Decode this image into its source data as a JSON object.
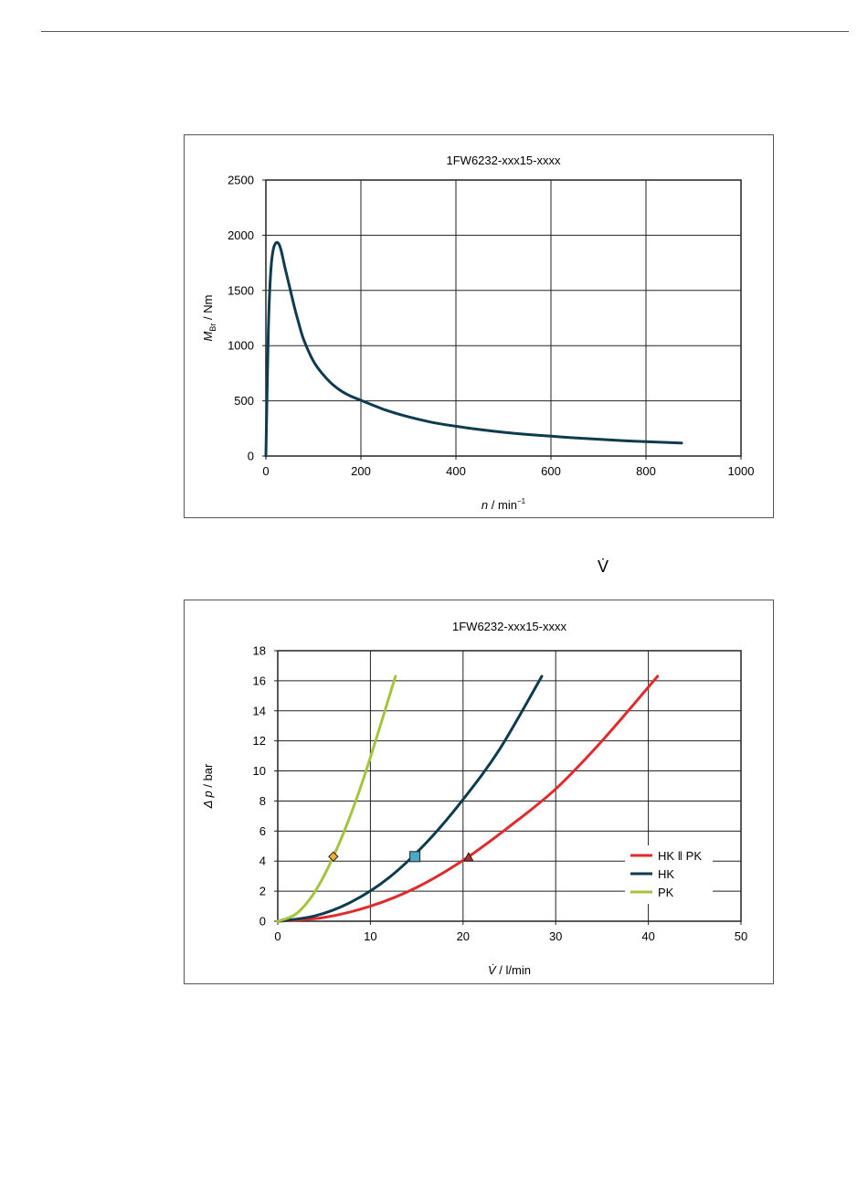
{
  "page": {
    "vdot_symbol": "V̇"
  },
  "chart_data": [
    {
      "type": "line",
      "title": "1FW6232-xxx15-xxxx",
      "xlabel_italic": "n",
      "xlabel_rest": " / min",
      "xlabel_sup": "−1",
      "ylabel_italic": "M",
      "ylabel_sub": "Br",
      "ylabel_rest": " / Nm",
      "xlim": [
        0,
        1000
      ],
      "ylim": [
        0,
        2500
      ],
      "x_ticks": [
        0,
        200,
        400,
        600,
        800,
        1000
      ],
      "y_ticks": [
        0,
        500,
        1000,
        1500,
        2000,
        2500
      ],
      "grid": true,
      "series": [
        {
          "color": "#0f3b4e",
          "x": [
            0,
            2,
            5,
            8,
            12,
            16,
            20,
            24,
            28,
            32,
            36,
            40,
            50,
            60,
            70,
            80,
            100,
            120,
            140,
            160,
            180,
            200,
            250,
            300,
            350,
            400,
            450,
            500,
            550,
            600,
            650,
            700,
            750,
            800,
            850,
            875
          ],
          "y": [
            0,
            450,
            1100,
            1500,
            1760,
            1880,
            1925,
            1935,
            1915,
            1865,
            1790,
            1710,
            1530,
            1350,
            1190,
            1050,
            860,
            740,
            650,
            585,
            540,
            505,
            420,
            355,
            305,
            270,
            240,
            215,
            195,
            180,
            165,
            152,
            140,
            130,
            122,
            118
          ]
        }
      ]
    },
    {
      "type": "line",
      "title": "1FW6232-xxx15-xxxx",
      "xlabel_italic": "V̇",
      "xlabel_rest": " / l/min",
      "ylabel_italic": "Δ p",
      "ylabel_rest": " / bar",
      "xlim": [
        0,
        50
      ],
      "ylim": [
        0,
        18
      ],
      "x_ticks": [
        0,
        10,
        20,
        30,
        40,
        50
      ],
      "y_ticks": [
        0,
        2,
        4,
        6,
        8,
        10,
        12,
        14,
        16,
        18
      ],
      "grid": true,
      "legend_position": "right-lower",
      "series": [
        {
          "name": "HK ‖ PK",
          "color": "#e02b2b",
          "marker": "triangle",
          "marker_point": [
            20.6,
            4.25
          ],
          "x": [
            0,
            5,
            10,
            15,
            20,
            25,
            30,
            35,
            41
          ],
          "y": [
            0,
            0.25,
            1.0,
            2.25,
            4.05,
            6.3,
            8.8,
            12.0,
            16.3
          ]
        },
        {
          "name": "HK",
          "color": "#0f3b4e",
          "marker": "square",
          "marker_point": [
            14.8,
            4.3
          ],
          "x": [
            0,
            4,
            8,
            12,
            16,
            20,
            24,
            28.5
          ],
          "y": [
            0,
            0.35,
            1.3,
            2.9,
            5.2,
            8.1,
            11.5,
            16.3
          ]
        },
        {
          "name": "PK",
          "color": "#a5c43e",
          "marker": "diamond",
          "marker_point": [
            6.0,
            4.3
          ],
          "x": [
            0,
            2,
            4,
            6,
            8,
            10,
            12.7
          ],
          "y": [
            0,
            0.5,
            1.95,
            4.3,
            7.3,
            10.9,
            16.3
          ]
        }
      ]
    }
  ]
}
